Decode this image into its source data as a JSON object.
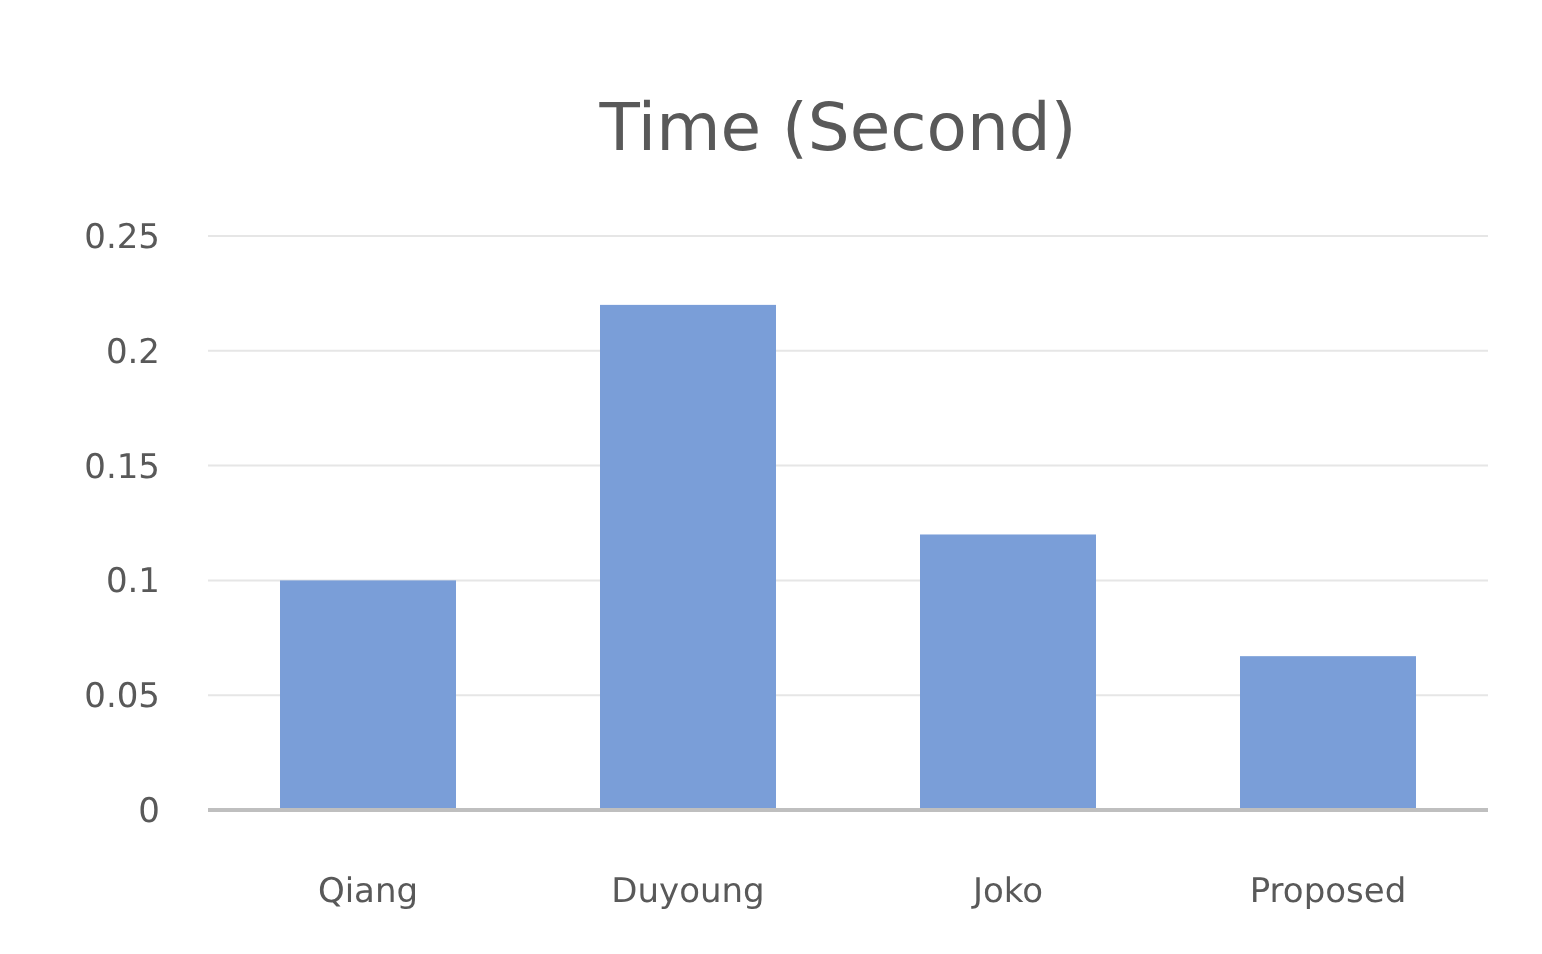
{
  "chart_data": {
    "type": "bar",
    "title": "Time (Second)",
    "categories": [
      "Qiang",
      "Duyoung",
      "Joko",
      "Proposed"
    ],
    "values": [
      0.1,
      0.22,
      0.12,
      0.067
    ],
    "color": "#7a9ed8",
    "ylim": [
      0,
      0.25
    ],
    "yticks": [
      0,
      0.05,
      0.1,
      0.15,
      0.2,
      0.25
    ],
    "grid": "y"
  }
}
